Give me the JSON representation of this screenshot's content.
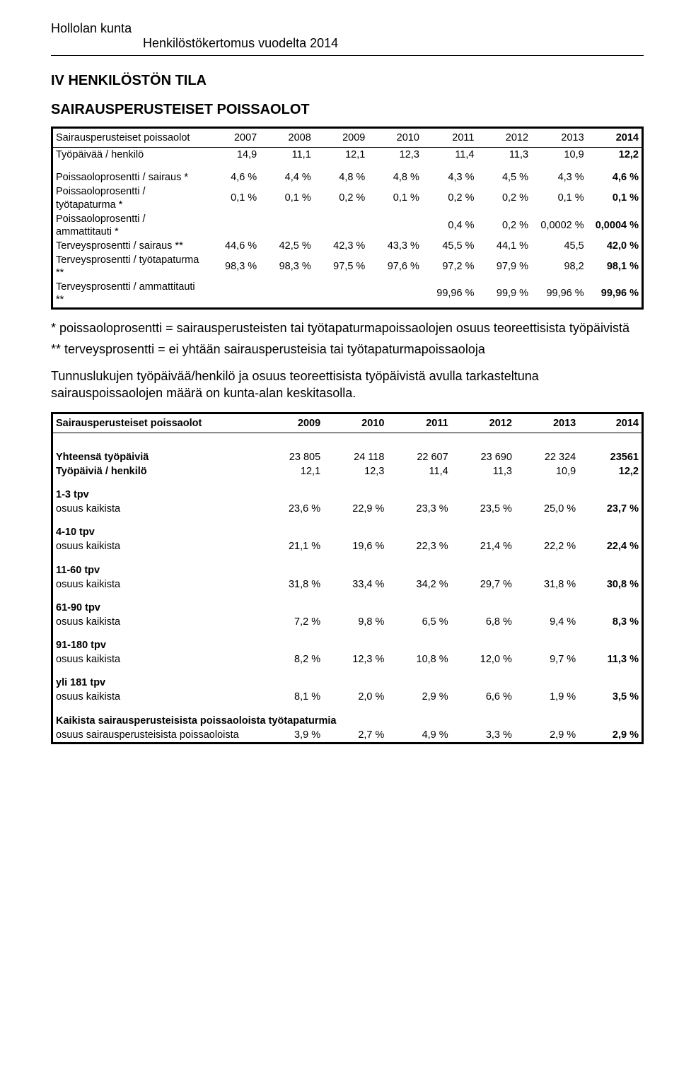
{
  "header": {
    "org": "Hollolan kunta",
    "title": "Henkilöstökertomus vuodelta 2014"
  },
  "section_title": "IV HENKILÖSTÖN TILA",
  "sub_title": "SAIRAUSPERUSTEISET POISSAOLOT",
  "table1": {
    "header_label": "Sairausperusteiset poissaolot",
    "years": [
      "2007",
      "2008",
      "2009",
      "2010",
      "2011",
      "2012",
      "2013",
      "2014"
    ],
    "rows": [
      {
        "label": "Työpäivää / henkilö",
        "vals": [
          "14,9",
          "11,1",
          "12,1",
          "12,3",
          "11,4",
          "11,3",
          "10,9",
          "12,2"
        ]
      },
      {
        "spacer": true
      },
      {
        "label": "Poissaoloprosentti / sairaus *",
        "vals": [
          "4,6 %",
          "4,4 %",
          "4,8 %",
          "4,8 %",
          "4,3 %",
          "4,5 %",
          "4,3 %",
          "4,6 %"
        ]
      },
      {
        "label": "Poissaoloprosentti / työtapaturma *",
        "vals": [
          "0,1 %",
          "0,1 %",
          "0,2 %",
          "0,1 %",
          "0,2 %",
          "0,2 %",
          "0,1 %",
          "0,1 %"
        ]
      },
      {
        "label": "Poissaoloprosentti / ammattitauti *",
        "vals": [
          "",
          "",
          "",
          "",
          "0,4 %",
          "0,2 %",
          "0,0002 %",
          "0,0004 %"
        ]
      },
      {
        "label": "Terveysprosentti / sairaus **",
        "vals": [
          "44,6 %",
          "42,5 %",
          "42,3 %",
          "43,3 %",
          "45,5 %",
          "44,1 %",
          "45,5",
          "42,0 %"
        ]
      },
      {
        "label": "Terveysprosentti / työtapaturma **",
        "vals": [
          "98,3 %",
          "98,3 %",
          "97,5 %",
          "97,6 %",
          "97,2 %",
          "97,9 %",
          "98,2",
          "98,1 %"
        ]
      },
      {
        "label": "Terveysprosentti / ammattitauti **",
        "vals": [
          "",
          "",
          "",
          "",
          "99,96 %",
          "99,9 %",
          "99,96 %",
          "99,96 %"
        ]
      }
    ]
  },
  "notes": {
    "note1": "* poissaoloprosentti = sairausperusteisten tai työtapaturmapoissaolojen osuus teoreettisista työpäivistä",
    "note2": "** terveysprosentti = ei yhtään sairausperusteisia tai työtapaturmapoissaoloja",
    "para": "Tunnuslukujen työpäivää/henkilö ja osuus teoreettisista työpäivistä avulla tarkasteltuna sairauspoissaolojen määrä on kunta-alan keskitasolla."
  },
  "table2": {
    "header_label": "Sairausperusteiset poissaolot",
    "years": [
      "2009",
      "2010",
      "2011",
      "2012",
      "2013",
      "2014"
    ],
    "top": [
      {
        "label": "Yhteensä työpäiviä",
        "vals": [
          "23 805",
          "24 118",
          "22 607",
          "23 690",
          "22 324",
          "23561"
        ]
      },
      {
        "label": "Työpäiviä / henkilö",
        "vals": [
          "12,1",
          "12,3",
          "11,4",
          "11,3",
          "10,9",
          "12,2"
        ]
      }
    ],
    "groups": [
      {
        "head": "1-3 tpv",
        "label": "osuus kaikista",
        "vals": [
          "23,6 %",
          "22,9 %",
          "23,3 %",
          "23,5 %",
          "25,0 %",
          "23,7 %"
        ]
      },
      {
        "head": "4-10 tpv",
        "label": "osuus kaikista",
        "vals": [
          "21,1 %",
          "19,6 %",
          "22,3 %",
          "21,4 %",
          "22,2 %",
          "22,4 %"
        ]
      },
      {
        "head": "11-60 tpv",
        "label": "osuus kaikista",
        "vals": [
          "31,8 %",
          "33,4 %",
          "34,2 %",
          "29,7 %",
          "31,8 %",
          "30,8 %"
        ]
      },
      {
        "head": "61-90 tpv",
        "label": "osuus kaikista",
        "vals": [
          "7,2 %",
          "9,8 %",
          "6,5 %",
          "6,8 %",
          "9,4 %",
          "8,3 %"
        ]
      },
      {
        "head": "91-180 tpv",
        "label": "osuus kaikista",
        "vals": [
          "8,2 %",
          "12,3 %",
          "10,8 %",
          "12,0 %",
          "9,7 %",
          "11,3 %"
        ]
      },
      {
        "head": "yli 181 tpv",
        "label": "osuus kaikista",
        "vals": [
          "8,1 %",
          "2,0 %",
          "2,9 %",
          "6,6 %",
          "1,9 %",
          "3,5 %"
        ]
      }
    ],
    "final": {
      "head": "Kaikista sairausperusteisista poissaoloista työtapaturmia",
      "label": "osuus sairausperusteisista poissaoloista",
      "vals": [
        "3,9 %",
        "2,7 %",
        "4,9 %",
        "3,3 %",
        "2,9 %",
        "2,9 %"
      ]
    }
  }
}
